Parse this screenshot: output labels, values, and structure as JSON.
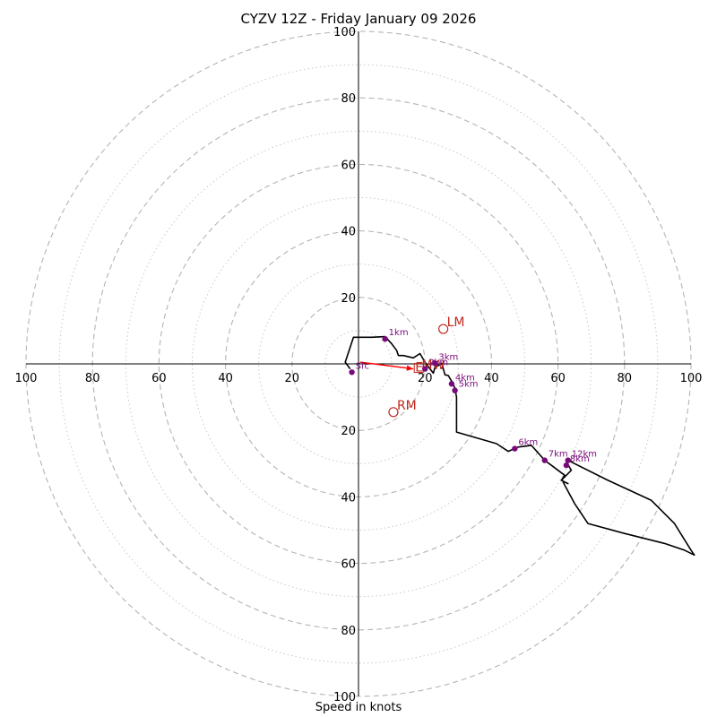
{
  "chart_data": {
    "type": "hodograph",
    "title": "CYZV 12Z - Friday January 09 2026",
    "xlabel": "Speed in knots",
    "ylabel": "",
    "xlim": [
      -100,
      100
    ],
    "ylim": [
      -100,
      100
    ],
    "range_rings_dashed": [
      20,
      40,
      60,
      80,
      100
    ],
    "range_rings_dotted": [
      10,
      30,
      50,
      70,
      90
    ],
    "x_tick_labels": [
      "100",
      "80",
      "60",
      "40",
      "20",
      "20",
      "40",
      "60",
      "80",
      "100"
    ],
    "x_tick_values": [
      -100,
      -80,
      -60,
      -40,
      -20,
      20,
      40,
      60,
      80,
      100
    ],
    "y_tick_labels": [
      "100",
      "80",
      "60",
      "40",
      "20",
      "20",
      "40",
      "60",
      "80",
      "100"
    ],
    "y_tick_values": [
      100,
      80,
      60,
      40,
      20,
      -20,
      -40,
      -60,
      -80,
      -100
    ],
    "wind_profile": {
      "color": "#000000",
      "points": [
        [
          -2.5,
          -1.5
        ],
        [
          -4,
          0.5
        ],
        [
          -1.5,
          8
        ],
        [
          4,
          8
        ],
        [
          8,
          8.2
        ],
        [
          10,
          6
        ],
        [
          11.5,
          4
        ],
        [
          12,
          2.5
        ],
        [
          13.5,
          2.5
        ],
        [
          16.5,
          1.8
        ],
        [
          18.5,
          3.1
        ],
        [
          20,
          0.5
        ],
        [
          21.5,
          -1.5
        ],
        [
          22.5,
          -2.8
        ],
        [
          23,
          -1
        ],
        [
          24,
          -0.5
        ],
        [
          25,
          0.2
        ],
        [
          26,
          -3.3
        ],
        [
          27,
          -3.5
        ],
        [
          28,
          -5.2
        ],
        [
          29,
          -7.3
        ],
        [
          29.5,
          -10
        ],
        [
          29.5,
          -15
        ],
        [
          29.5,
          -20.5
        ],
        [
          41.5,
          -24
        ],
        [
          45,
          -26.3
        ],
        [
          48,
          -25
        ],
        [
          52,
          -24.5
        ],
        [
          56,
          -29
        ],
        [
          60,
          -32
        ],
        [
          62,
          -33.5
        ],
        [
          61,
          -35
        ],
        [
          63,
          -36
        ],
        [
          62,
          -35.5
        ],
        [
          61,
          -35
        ],
        [
          64,
          -32
        ],
        [
          63,
          -30.3
        ],
        [
          62.5,
          -29.8
        ],
        [
          63,
          -29
        ],
        [
          75,
          -35
        ],
        [
          88,
          -41
        ],
        [
          95,
          -48
        ],
        [
          100,
          -56
        ],
        [
          101,
          -57.5
        ],
        [
          98,
          -56
        ],
        [
          92,
          -54
        ],
        [
          80,
          -51
        ],
        [
          69,
          -48
        ],
        [
          65,
          -42
        ],
        [
          61.5,
          -35.5
        ]
      ]
    },
    "height_markers": {
      "color": "#7a0a7a",
      "points": [
        {
          "label": "Sfc",
          "u": -2,
          "v": -2.5
        },
        {
          "label": "1km",
          "u": 8,
          "v": 7.5
        },
        {
          "label": "2km",
          "u": 20,
          "v": -1.5
        },
        {
          "label": "3km",
          "u": 23,
          "v": 0.2
        },
        {
          "label": "4km",
          "u": 28,
          "v": -6
        },
        {
          "label": "5km",
          "u": 29,
          "v": -8
        },
        {
          "label": "6km",
          "u": 47,
          "v": -25.5
        },
        {
          "label": "7km",
          "u": 56,
          "v": -29
        },
        {
          "label": "8km",
          "u": 62.5,
          "v": -30.5
        },
        {
          "label": "12km",
          "u": 63,
          "v": -29
        }
      ]
    },
    "storm_motion": {
      "color": "#c0281e",
      "points": [
        {
          "label": "LM",
          "u": 25.5,
          "v": 10.5
        },
        {
          "label": "RM",
          "u": 10.5,
          "v": -14.5
        },
        {
          "label": "MW",
          "u": 19.5,
          "v": -0.5
        }
      ]
    },
    "shear_vector": {
      "color": "#ff0000",
      "label": "E",
      "from": [
        0.5,
        0.5
      ],
      "to": [
        16.5,
        -1.5
      ]
    }
  }
}
